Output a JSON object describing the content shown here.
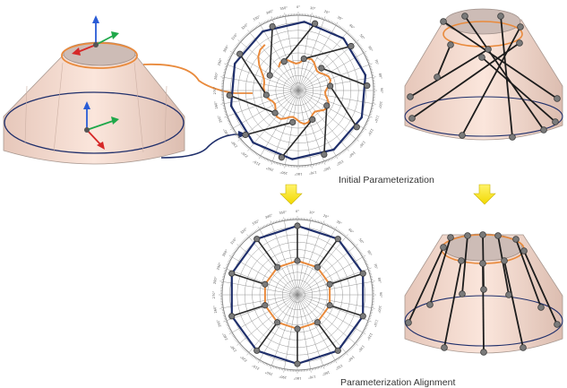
{
  "captions": {
    "initial": "Initial Parameterization",
    "alignment": "Parameterization Alignment"
  },
  "colors": {
    "frustum_fill": "#f6d9cc",
    "frustum_top": "#c9b8b3",
    "frustum_edge": "#9f8f89",
    "orange": "#e98a3c",
    "navy": "#1f2f6b",
    "connector": "#2a2a2a",
    "node": "#7a7a7a",
    "arrow_fill": "#ffee00",
    "axis_x": "#d62828",
    "axis_y": "#1fa84a",
    "axis_z": "#2a5cd6",
    "polar_grid": "#8a8a8a"
  },
  "polar": {
    "rings": 10,
    "spokes": 36,
    "angle_labels": [
      "0°",
      "10°",
      "20°",
      "30°",
      "40°",
      "50°",
      "60°",
      "70°",
      "80°",
      "90°",
      "100°",
      "110°",
      "120°",
      "130°",
      "140°",
      "150°",
      "160°",
      "170°",
      "180°",
      "190°",
      "200°",
      "210°",
      "220°",
      "230°",
      "240°",
      "250°",
      "260°",
      "270°",
      "280°",
      "290°",
      "300°",
      "310°",
      "320°",
      "330°",
      "340°",
      "350°"
    ]
  },
  "arrows": [
    "down-arrow",
    "down-arrow",
    "down-arrow"
  ]
}
